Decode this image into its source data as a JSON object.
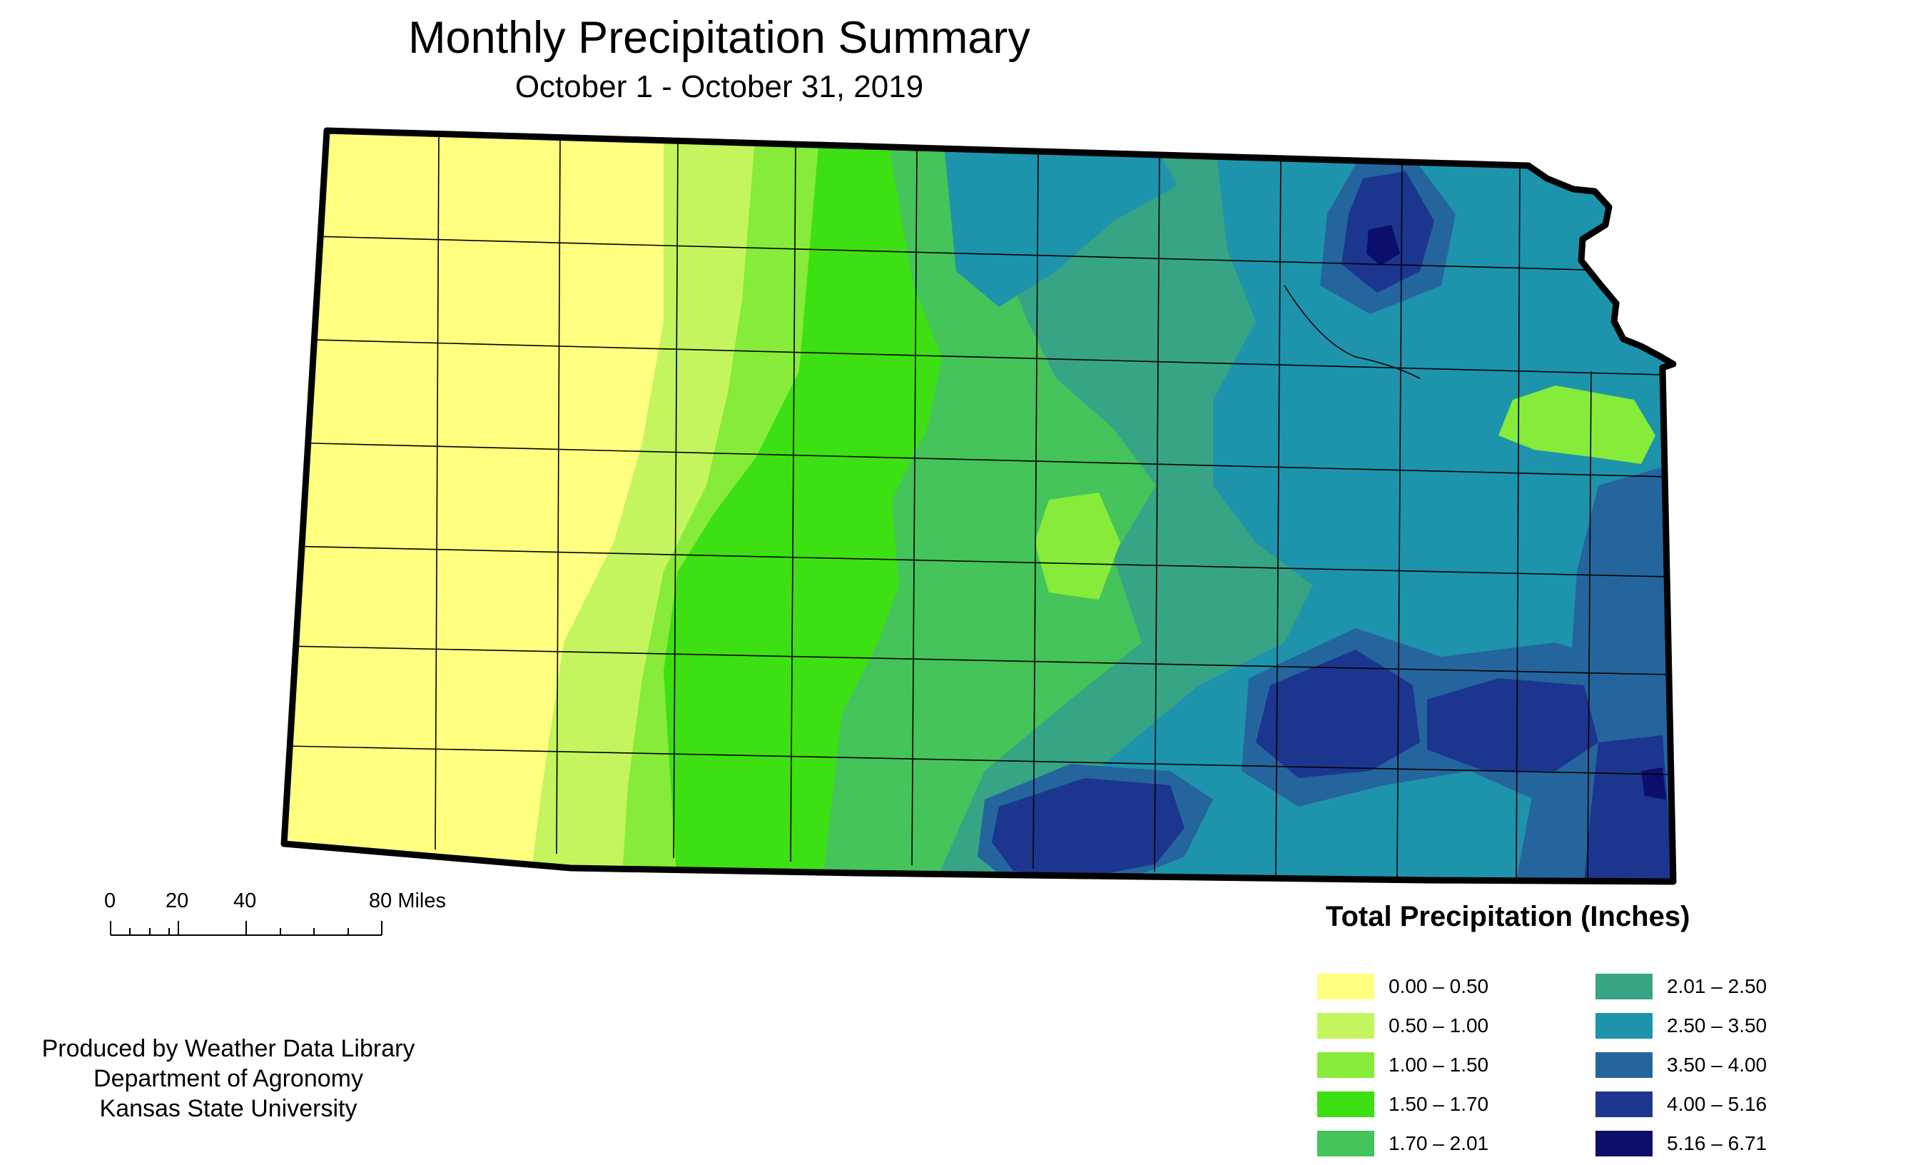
{
  "header": {
    "title": "Monthly Precipitation Summary",
    "subtitle": "October 1 - October 31, 2019"
  },
  "map": {
    "region": "Kansas",
    "boundary_color": "#000000",
    "county_line_color": "#000000"
  },
  "scale_bar": {
    "ticks": [
      "0",
      "20",
      "40",
      "80 Miles"
    ]
  },
  "credit": {
    "line1": "Produced by Weather Data Library",
    "line2": "Department of Agronomy",
    "line3": "Kansas State University"
  },
  "legend": {
    "title": "Total Precipitation (Inches)",
    "items": [
      {
        "label": "0.00 – 0.50",
        "color": "#ffff80"
      },
      {
        "label": "0.50 – 1.00",
        "color": "#c4f55e"
      },
      {
        "label": "1.00 – 1.50",
        "color": "#87eb3a"
      },
      {
        "label": "1.50 – 1.70",
        "color": "#3ce013"
      },
      {
        "label": "1.70 – 2.01",
        "color": "#44c45a"
      },
      {
        "label": "2.01 – 2.50",
        "color": "#37a485"
      },
      {
        "label": "2.50 – 3.50",
        "color": "#1e93ac"
      },
      {
        "label": "3.50 – 4.00",
        "color": "#24659e"
      },
      {
        "label": "4.00 – 5.16",
        "color": "#1c358f"
      },
      {
        "label": "5.16 – 6.71",
        "color": "#0b0e6b"
      }
    ]
  }
}
